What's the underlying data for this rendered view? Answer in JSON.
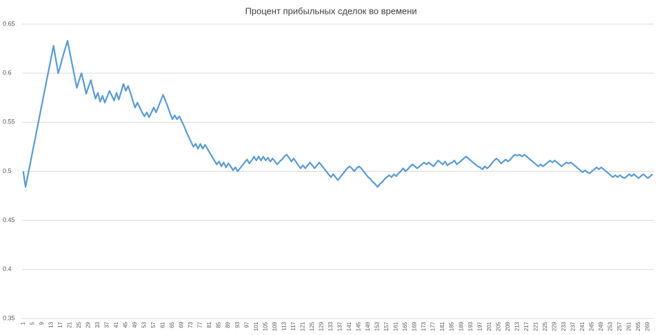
{
  "chart_data": {
    "type": "line",
    "title": "Процент прибыльных сделок во времени",
    "categories": [
      "1",
      null,
      null,
      null,
      "5",
      null,
      null,
      null,
      "9",
      null,
      null,
      null,
      "13",
      null,
      null,
      null,
      "17",
      null,
      null,
      null,
      "21",
      null,
      null,
      null,
      "25",
      null,
      null,
      null,
      "29",
      null,
      null,
      null,
      "33",
      null,
      null,
      null,
      "37",
      null,
      null,
      null,
      "41",
      null,
      null,
      null,
      "45",
      null,
      null,
      null,
      "49",
      null,
      null,
      null,
      "53",
      null,
      null,
      null,
      "57",
      null,
      null,
      null,
      "61",
      null,
      null,
      null,
      "65",
      null,
      null,
      null,
      "69",
      null,
      null,
      null,
      "73",
      null,
      null,
      null,
      "77",
      null,
      null,
      null,
      "81",
      null,
      null,
      null,
      "85",
      null,
      null,
      null,
      "89",
      null,
      null,
      null,
      "93",
      null,
      null,
      null,
      "97",
      null,
      null,
      null,
      "101",
      null,
      null,
      null,
      "105",
      null,
      null,
      null,
      "109",
      null,
      null,
      null,
      "113",
      null,
      null,
      null,
      "117",
      null,
      null,
      null,
      "121",
      null,
      null,
      null,
      "125",
      null,
      null,
      null,
      "129",
      null,
      null,
      null,
      "133",
      null,
      null,
      null,
      "137",
      null,
      null,
      null,
      "141",
      null,
      null,
      null,
      "145",
      null,
      null,
      null,
      "149",
      null,
      null,
      null,
      "153",
      null,
      null,
      null,
      "157",
      null,
      null,
      null,
      "161",
      null,
      null,
      null,
      "165",
      null,
      null,
      null,
      "169",
      null,
      null,
      null,
      "173",
      null,
      null,
      null,
      "177",
      null,
      null,
      null,
      "181",
      null,
      null,
      null,
      "185",
      null,
      null,
      null,
      "189",
      null,
      null,
      null,
      "193",
      null,
      null,
      null,
      "197",
      null,
      null,
      null,
      "201",
      null,
      null,
      null,
      "205",
      null,
      null,
      null,
      "209",
      null,
      null,
      null,
      "213",
      null,
      null,
      null,
      "217",
      null,
      null,
      null,
      "221",
      null,
      null,
      null,
      "225",
      null,
      null,
      null,
      "229",
      null,
      null,
      null,
      "233",
      null,
      null,
      null,
      "237",
      null,
      null,
      null,
      "241",
      null,
      null,
      null,
      "245",
      null,
      null,
      null,
      "249",
      null,
      null,
      null,
      "253",
      null,
      null,
      null,
      "257",
      null,
      null,
      null,
      "261",
      null,
      null,
      null,
      "265",
      null,
      null,
      null,
      "269",
      null,
      null
    ],
    "values": [
      0.5,
      0.484,
      0.496,
      0.508,
      0.52,
      0.532,
      0.544,
      0.556,
      0.568,
      0.58,
      0.592,
      0.604,
      0.616,
      0.628,
      0.614,
      0.6,
      0.608,
      0.617,
      0.625,
      0.633,
      0.621,
      0.609,
      0.597,
      0.585,
      0.593,
      0.6,
      0.59,
      0.579,
      0.586,
      0.593,
      0.583,
      0.574,
      0.58,
      0.571,
      0.577,
      0.57,
      0.576,
      0.582,
      0.577,
      0.572,
      0.58,
      0.573,
      0.581,
      0.589,
      0.582,
      0.587,
      0.58,
      0.572,
      0.565,
      0.57,
      0.565,
      0.56,
      0.556,
      0.56,
      0.555,
      0.56,
      0.565,
      0.56,
      0.566,
      0.572,
      0.578,
      0.572,
      0.566,
      0.559,
      0.553,
      0.557,
      0.553,
      0.556,
      0.551,
      0.546,
      0.54,
      0.535,
      0.53,
      0.525,
      0.528,
      0.523,
      0.528,
      0.523,
      0.527,
      0.523,
      0.519,
      0.515,
      0.511,
      0.507,
      0.51,
      0.505,
      0.509,
      0.504,
      0.508,
      0.505,
      0.501,
      0.504,
      0.5,
      0.503,
      0.506,
      0.509,
      0.512,
      0.508,
      0.511,
      0.515,
      0.511,
      0.515,
      0.511,
      0.515,
      0.511,
      0.514,
      0.51,
      0.513,
      0.51,
      0.507,
      0.51,
      0.512,
      0.515,
      0.517,
      0.514,
      0.51,
      0.513,
      0.51,
      0.506,
      0.503,
      0.506,
      0.503,
      0.506,
      0.509,
      0.506,
      0.503,
      0.506,
      0.509,
      0.506,
      0.503,
      0.5,
      0.497,
      0.494,
      0.497,
      0.494,
      0.491,
      0.494,
      0.497,
      0.5,
      0.503,
      0.505,
      0.503,
      0.5,
      0.503,
      0.505,
      0.503,
      0.5,
      0.497,
      0.494,
      0.492,
      0.489,
      0.487,
      0.484,
      0.487,
      0.489,
      0.492,
      0.494,
      0.496,
      0.494,
      0.497,
      0.495,
      0.498,
      0.5,
      0.503,
      0.5,
      0.502,
      0.505,
      0.507,
      0.505,
      0.503,
      0.505,
      0.507,
      0.509,
      0.507,
      0.509,
      0.507,
      0.505,
      0.508,
      0.511,
      0.509,
      0.507,
      0.51,
      0.506,
      0.508,
      0.509,
      0.511,
      0.507,
      0.509,
      0.511,
      0.513,
      0.515,
      0.513,
      0.511,
      0.509,
      0.507,
      0.505,
      0.504,
      0.502,
      0.505,
      0.503,
      0.505,
      0.508,
      0.511,
      0.513,
      0.511,
      0.508,
      0.51,
      0.512,
      0.51,
      0.512,
      0.515,
      0.517,
      0.516,
      0.517,
      0.515,
      0.517,
      0.515,
      0.513,
      0.511,
      0.509,
      0.507,
      0.505,
      0.507,
      0.505,
      0.507,
      0.509,
      0.511,
      0.509,
      0.511,
      0.509,
      0.507,
      0.505,
      0.507,
      0.509,
      0.508,
      0.509,
      0.507,
      0.505,
      0.503,
      0.501,
      0.499,
      0.501,
      0.499,
      0.498,
      0.5,
      0.502,
      0.504,
      0.502,
      0.504,
      0.502,
      0.5,
      0.498,
      0.496,
      0.494,
      0.496,
      0.494,
      0.496,
      0.494,
      0.493,
      0.495,
      0.497,
      0.495,
      0.497,
      0.495,
      0.493,
      0.495,
      0.497,
      0.495,
      0.493,
      0.495,
      0.497
    ],
    "color": "#5b9bd5",
    "ylim": [
      0.35,
      0.65
    ],
    "yticks": [
      0.35,
      0.4,
      0.45,
      0.5,
      0.55,
      0.6,
      0.65
    ],
    "grid": true
  }
}
